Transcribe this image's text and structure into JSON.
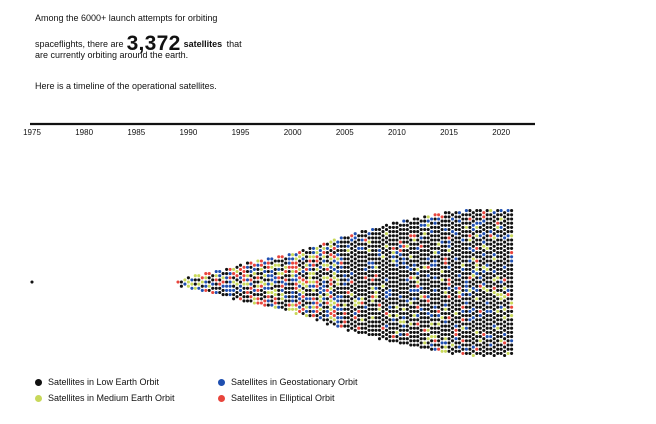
{
  "intro": {
    "line1": "Among the 6000+ launch attempts for orbiting",
    "line2_prefix": "spaceflights, there are",
    "count": "3,372",
    "bold_word": "satellites",
    "line2_suffix": "that",
    "line3": "are currently orbiting around the earth."
  },
  "timeline_note": "Here is a timeline of the operational satellites.",
  "colors": {
    "leo": "#111111",
    "meo": "#c8d85a",
    "geo": "#1f4fb0",
    "elliptical": "#e8453c",
    "axis": "#111111"
  },
  "chart_data": {
    "type": "scatter",
    "title": "",
    "xlabel": "",
    "ylabel": "",
    "x_axis_position": "top",
    "xlim": [
      1975,
      2022
    ],
    "x_ticks": [
      "1975",
      "1980",
      "1985",
      "1990",
      "1995",
      "2000",
      "2005",
      "2010",
      "2015",
      "2020"
    ],
    "grid": false,
    "legend_position": "bottom-left",
    "total": 3372,
    "series": [
      {
        "name": "Satellites in Low Earth Orbit",
        "key": "leo"
      },
      {
        "name": "Satellites in Geostationary Orbit",
        "key": "geo"
      },
      {
        "name": "Satellites in Medium Earth Orbit",
        "key": "meo"
      },
      {
        "name": "Satellites in Elliptical Orbit",
        "key": "elliptical"
      }
    ],
    "stack_height_by_year": [
      [
        1975,
        1
      ],
      [
        1989,
        1
      ],
      [
        1990,
        3
      ],
      [
        1991,
        4
      ],
      [
        1992,
        5
      ],
      [
        1993,
        6
      ],
      [
        1994,
        7
      ],
      [
        1995,
        9
      ],
      [
        1996,
        10
      ],
      [
        1997,
        11
      ],
      [
        1998,
        12
      ],
      [
        1999,
        13
      ],
      [
        2000,
        14
      ],
      [
        2001,
        16
      ],
      [
        2002,
        17
      ],
      [
        2003,
        19
      ],
      [
        2004,
        21
      ],
      [
        2005,
        22
      ],
      [
        2006,
        24
      ],
      [
        2007,
        25
      ],
      [
        2008,
        26
      ],
      [
        2009,
        28
      ],
      [
        2010,
        29
      ],
      [
        2011,
        30
      ],
      [
        2012,
        31
      ],
      [
        2013,
        32
      ],
      [
        2014,
        33
      ],
      [
        2015,
        34
      ],
      [
        2016,
        34
      ],
      [
        2017,
        35
      ],
      [
        2018,
        35
      ],
      [
        2019,
        35
      ],
      [
        2020,
        35
      ],
      [
        2021,
        35
      ]
    ]
  }
}
